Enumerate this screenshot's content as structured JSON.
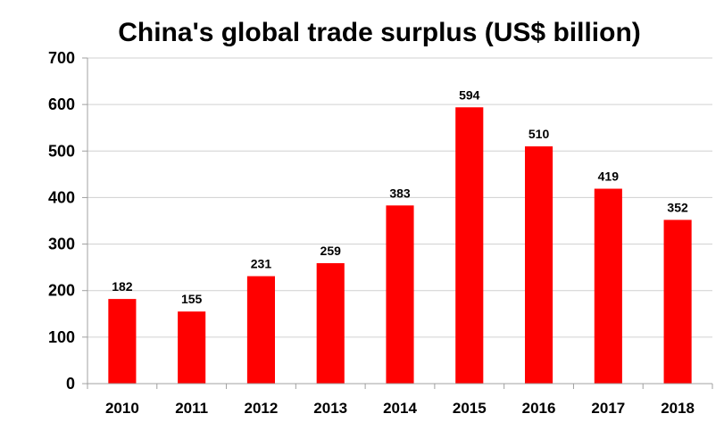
{
  "chart_data": {
    "type": "bar",
    "title": "China's global trade surplus (US$ billion)",
    "xlabel": "",
    "ylabel": "",
    "categories": [
      "2010",
      "2011",
      "2012",
      "2013",
      "2014",
      "2015",
      "2016",
      "2017",
      "2018"
    ],
    "values": [
      182,
      155,
      231,
      259,
      383,
      594,
      510,
      419,
      352
    ],
    "ylim": [
      0,
      700
    ],
    "yticks": [
      0,
      100,
      200,
      300,
      400,
      500,
      600,
      700
    ],
    "grid": true,
    "legend": "none",
    "bar_color": "#ff0000",
    "data_labels": true
  }
}
